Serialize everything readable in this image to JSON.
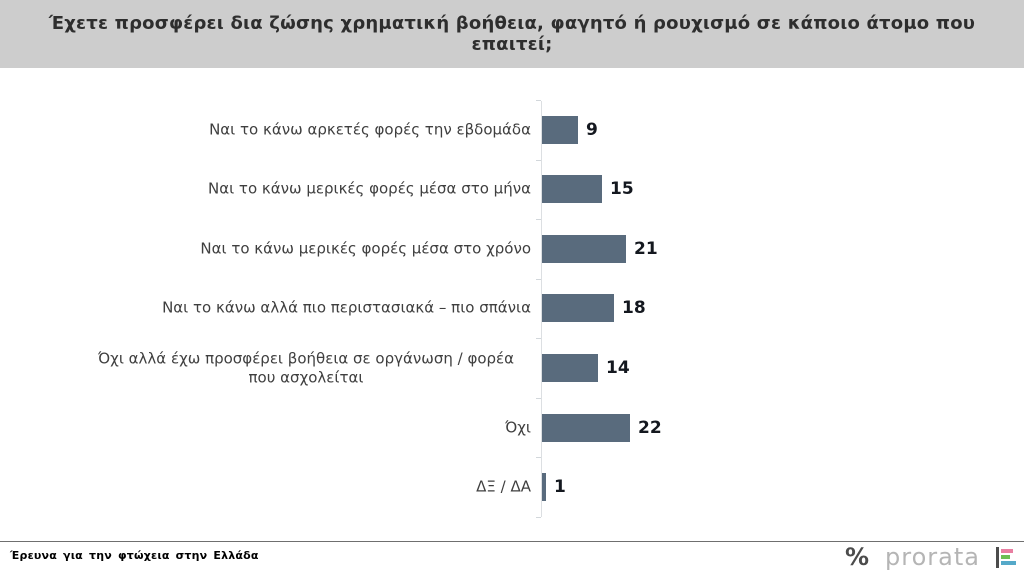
{
  "header": {
    "title": "Έχετε προσφέρει δια ζώσης χρηματική βοήθεια, φαγητό ή ρουχισμό σε κάποιο άτομο που επαιτεί;",
    "background_color": "#cdcdcd"
  },
  "chart_data": {
    "type": "bar",
    "orientation": "horizontal",
    "title": "Έχετε προσφέρει δια ζώσης χρηματική βοήθεια, φαγητό ή ρουχισμό σε κάποιο άτομο που επαιτεί;",
    "categories": [
      "Ναι το κάνω αρκετές φορές την εβδομάδα",
      "Ναι το κάνω μερικές φορές μέσα στο μήνα",
      "Ναι το κάνω μερικές φορές μέσα στο χρόνο",
      "Ναι το κάνω αλλά πιο περιστασιακά – πιο σπάνια",
      "Όχι αλλά έχω προσφέρει βοήθεια σε οργάνωση / φορέα\nπου ασχολείται",
      "Όχι",
      "ΔΞ / ΔΑ"
    ],
    "values": [
      9,
      15,
      21,
      18,
      14,
      22,
      1
    ],
    "value_labels": [
      "9",
      "15",
      "21",
      "18",
      "14",
      "22",
      "1"
    ],
    "xlim": [
      0,
      25
    ],
    "bar_color": "#596b7d",
    "axis_line_color": "#dcdfe2",
    "grid": false,
    "legend": false,
    "data_labels_position": "outside-end"
  },
  "footer": {
    "source_note": "Έρευνα για την φτώχεια στην Ελλάδα",
    "logo": {
      "percent_mark": "%",
      "wordmark": "prorata",
      "icon_bar_colors": {
        "pink": "#e87ea1",
        "green": "#6cbf54",
        "blue": "#55a9c9"
      }
    }
  }
}
